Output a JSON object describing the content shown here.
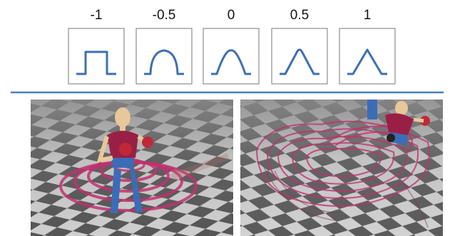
{
  "labels": [
    "-1",
    "-0.5",
    "0",
    "0.5",
    "1"
  ]
}
